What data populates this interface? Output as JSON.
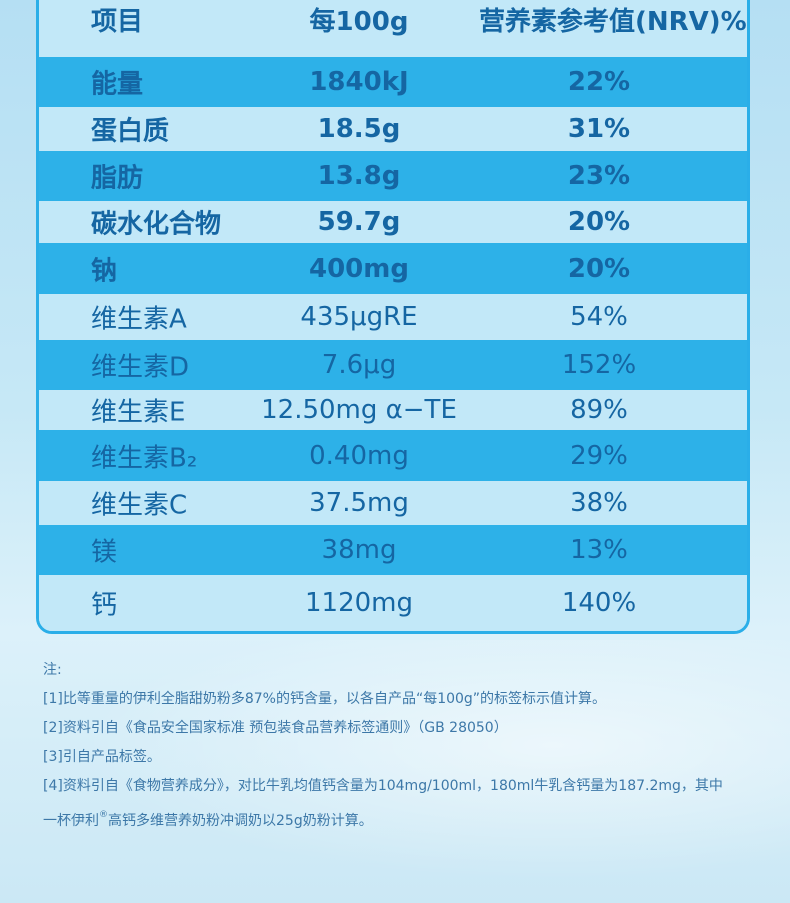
{
  "table": {
    "headers": [
      "项目",
      "每100g",
      "营养素参考值(NRV)%"
    ],
    "rows": [
      {
        "name": "能量",
        "per100g": "1840kJ",
        "nrv": "22%"
      },
      {
        "name": "蛋白质",
        "per100g": "18.5g",
        "nrv": "31%"
      },
      {
        "name": "脂肪",
        "per100g": "13.8g",
        "nrv": "23%"
      },
      {
        "name": "碳水化合物",
        "per100g": "59.7g",
        "nrv": "20%"
      },
      {
        "name": "钠",
        "per100g": "400mg",
        "nrv": "20%"
      },
      {
        "name": "维生素A",
        "per100g": "435μgRE",
        "nrv": "54%"
      },
      {
        "name": "维生素D",
        "per100g": "7.6μg",
        "nrv": "152%"
      },
      {
        "name": "维生素E",
        "per100g": "12.50mg α−TE",
        "nrv": "89%"
      },
      {
        "name": "维生素B₂",
        "per100g": "0.40mg",
        "nrv": "29%"
      },
      {
        "name": "维生素C",
        "per100g": "37.5mg",
        "nrv": "38%"
      },
      {
        "name": "镁",
        "per100g": "38mg",
        "nrv": "13%"
      },
      {
        "name": "钙",
        "per100g": "1120mg",
        "nrv": "140%"
      }
    ]
  },
  "notes": {
    "title": "注:",
    "n1": "[1]比等重量的伊利全脂甜奶粉多87%的钙含量，以各自产品“每100g”的标签标示值计算。",
    "n2": "[2]资料引自《食品安全国家标准 预包装食品营养标签通则》（GB 28050）",
    "n3": "[3]引自产品标签。",
    "n4a": "[4]资料引自《食物营养成分》，对比牛乳均值钙含量为104mg/100ml，180ml牛乳含钙量为187.2mg，其中",
    "n4b_pre": "一杯伊利",
    "n4b_mark": "®",
    "n4b_post": "高钙多维营养奶粉冲调奶以25g奶粉计算。"
  },
  "colors": {
    "accent": "#2db1e8",
    "row_light": "#c2e8f8",
    "text": "#1566a3",
    "note_text": "#3d78a8"
  }
}
